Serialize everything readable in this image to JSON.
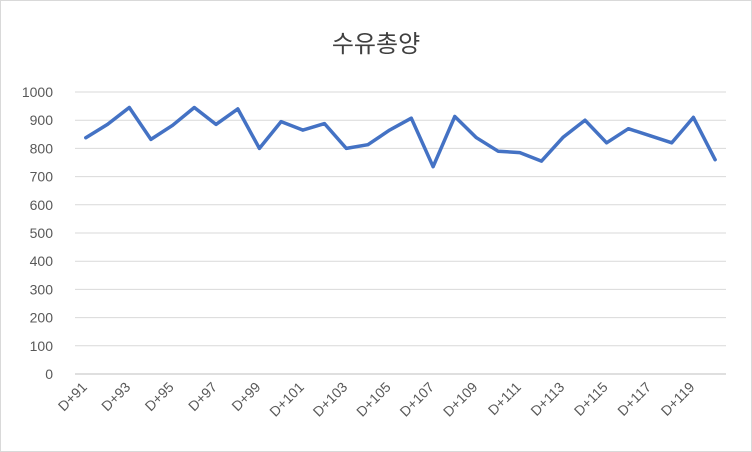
{
  "chart_data": {
    "type": "line",
    "title": "수유총양",
    "xlabel": "",
    "ylabel": "",
    "ylim": [
      0,
      1000
    ],
    "yticks": [
      0,
      100,
      200,
      300,
      400,
      500,
      600,
      700,
      800,
      900,
      1000
    ],
    "grid": true,
    "categories": [
      "D+91",
      "D+92",
      "D+93",
      "D+94",
      "D+95",
      "D+96",
      "D+97",
      "D+98",
      "D+99",
      "D+100",
      "D+101",
      "D+102",
      "D+103",
      "D+104",
      "D+105",
      "D+106",
      "D+107",
      "D+108",
      "D+109",
      "D+110",
      "D+111",
      "D+112",
      "D+113",
      "D+114",
      "D+115",
      "D+116",
      "D+117",
      "D+118",
      "D+119",
      "D+120"
    ],
    "tick_labels": [
      "D+91",
      "D+93",
      "D+95",
      "D+97",
      "D+99",
      "D+101",
      "D+103",
      "D+105",
      "D+107",
      "D+109",
      "D+111",
      "D+113",
      "D+115",
      "D+117",
      "D+119"
    ],
    "series": [
      {
        "color": "#4472c4",
        "values": [
          838,
          885,
          945,
          832,
          882,
          945,
          885,
          940,
          800,
          895,
          865,
          888,
          800,
          813,
          865,
          907,
          735,
          913,
          838,
          790,
          785,
          755,
          840,
          900,
          820,
          870,
          845,
          820,
          910,
          760
        ]
      }
    ]
  }
}
